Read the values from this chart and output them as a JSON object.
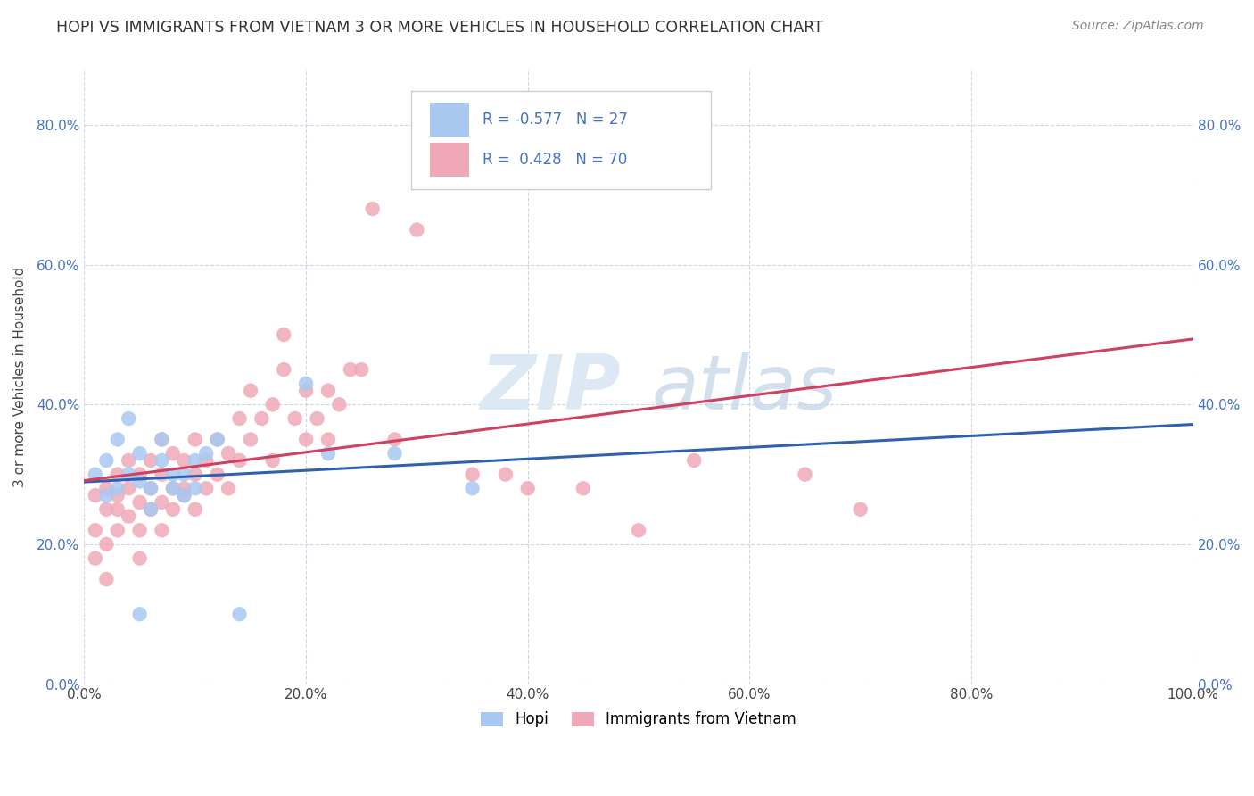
{
  "title": "HOPI VS IMMIGRANTS FROM VIETNAM 3 OR MORE VEHICLES IN HOUSEHOLD CORRELATION CHART",
  "source": "Source: ZipAtlas.com",
  "ylabel": "3 or more Vehicles in Household",
  "xlim": [
    0.0,
    100.0
  ],
  "ylim": [
    0.0,
    88.0
  ],
  "xticks": [
    0,
    20,
    40,
    60,
    80,
    100
  ],
  "xtick_labels": [
    "0.0%",
    "20.0%",
    "40.0%",
    "60.0%",
    "80.0%",
    "100.0%"
  ],
  "yticks": [
    0,
    20,
    40,
    60,
    80
  ],
  "ytick_labels": [
    "0.0%",
    "20.0%",
    "40.0%",
    "60.0%",
    "80.0%"
  ],
  "hopi_color": "#a8c8f0",
  "vietnam_color": "#f0a8b8",
  "hopi_line_color": "#3060b0",
  "vietnam_line_color": "#d04060",
  "legend_hopi_r": "-0.577",
  "legend_hopi_n": "27",
  "legend_vietnam_r": "0.428",
  "legend_vietnam_n": "70",
  "legend_bottom_hopi": "Hopi",
  "legend_bottom_vietnam": "Immigrants from Vietnam",
  "background_color": "#ffffff",
  "grid_color": "#c8d4e8",
  "tick_color": "#4472c4",
  "hopi_scatter_x": [
    1,
    2,
    2,
    3,
    3,
    4,
    4,
    5,
    5,
    5,
    6,
    6,
    7,
    7,
    8,
    8,
    9,
    9,
    10,
    10,
    11,
    12,
    14,
    20,
    22,
    28,
    35
  ],
  "hopi_scatter_y": [
    30,
    27,
    32,
    28,
    35,
    30,
    38,
    29,
    33,
    10,
    28,
    25,
    32,
    35,
    30,
    28,
    27,
    30,
    28,
    32,
    33,
    35,
    10,
    43,
    33,
    33,
    28
  ],
  "vietnam_scatter_x": [
    1,
    1,
    1,
    2,
    2,
    2,
    2,
    3,
    3,
    3,
    3,
    4,
    4,
    4,
    5,
    5,
    5,
    5,
    6,
    6,
    6,
    7,
    7,
    7,
    7,
    8,
    8,
    8,
    9,
    9,
    9,
    10,
    10,
    10,
    11,
    11,
    12,
    12,
    13,
    13,
    14,
    14,
    15,
    15,
    16,
    17,
    17,
    18,
    18,
    19,
    20,
    20,
    21,
    22,
    22,
    23,
    24,
    25,
    26,
    28,
    30,
    32,
    35,
    38,
    40,
    45,
    50,
    55,
    65,
    70
  ],
  "vietnam_scatter_y": [
    27,
    22,
    18,
    25,
    20,
    28,
    15,
    27,
    22,
    30,
    25,
    28,
    24,
    32,
    26,
    30,
    22,
    18,
    28,
    32,
    25,
    30,
    26,
    22,
    35,
    28,
    33,
    25,
    27,
    32,
    28,
    30,
    25,
    35,
    32,
    28,
    30,
    35,
    33,
    28,
    38,
    32,
    35,
    42,
    38,
    40,
    32,
    45,
    50,
    38,
    42,
    35,
    38,
    35,
    42,
    40,
    45,
    45,
    68,
    35,
    65,
    72,
    30,
    30,
    28,
    28,
    22,
    32,
    30,
    25
  ],
  "diag_line_color": "#d0a8b8",
  "diag_line_style": "--"
}
